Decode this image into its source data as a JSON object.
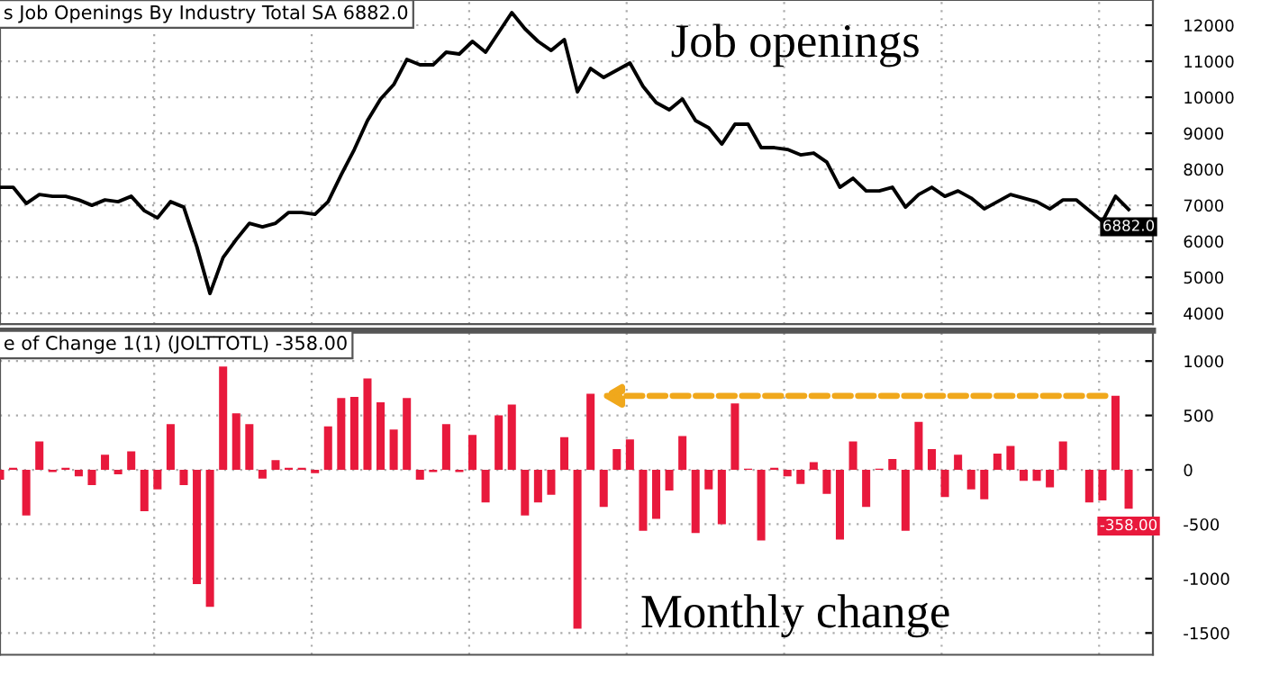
{
  "chart_data": [
    {
      "type": "line",
      "title": "s Job Openings By Industry Total SA 6882.0",
      "annotations": [
        "Job openings"
      ],
      "categories": [
        null,
        null,
        null,
        null,
        null,
        null,
        null,
        null,
        null,
        null,
        null,
        null,
        null,
        null,
        null,
        null,
        null,
        null,
        null,
        null,
        null,
        null,
        null,
        null,
        null,
        null,
        null,
        null,
        null,
        null,
        null,
        null,
        null,
        null,
        null,
        null,
        null,
        null,
        null,
        null,
        null,
        null,
        null,
        null,
        null,
        null,
        null,
        null,
        null,
        null,
        null,
        null,
        null,
        null,
        null,
        null,
        null,
        null,
        null,
        null,
        null,
        null,
        null,
        null,
        null,
        null,
        null,
        null,
        null,
        null,
        null,
        null,
        null,
        null,
        null,
        null,
        null,
        null,
        null,
        null,
        null,
        null,
        null,
        null,
        null,
        null,
        null
      ],
      "series": [
        {
          "color": "#000000",
          "values": [
            7500,
            7500,
            7050,
            7300,
            7250,
            7250,
            7150,
            7000,
            7150,
            7100,
            7250,
            6850,
            6650,
            7100,
            6950,
            5850,
            4550,
            5550,
            6050,
            6500,
            6400,
            6500,
            6800,
            6800,
            6750,
            7100,
            7850,
            8550,
            9350,
            9950,
            10350,
            11050,
            10900,
            10900,
            11250,
            11200,
            11550,
            11250,
            11800,
            12350,
            11900,
            11550,
            11300,
            11600,
            10150,
            10800,
            10550,
            10750,
            10950,
            10300,
            9850,
            9650,
            9950,
            9350,
            9150,
            8700,
            9250,
            9250,
            8600,
            8600,
            8550,
            8400,
            8450,
            8200,
            7500,
            7750,
            7400,
            7400,
            7500,
            6950,
            7300,
            7500,
            7250,
            7400,
            7200,
            6900,
            7100,
            7300,
            7200,
            7100,
            6900,
            7150,
            7150,
            6850,
            6550,
            7250,
            6882
          ],
          "value_labels": [
            null,
            null,
            null,
            null,
            null,
            null,
            null,
            null,
            null,
            null,
            null,
            null,
            null,
            null,
            null,
            null,
            null,
            null,
            null,
            null,
            null,
            null,
            null,
            null,
            null,
            null,
            null,
            null,
            null,
            null,
            null,
            null,
            null,
            null,
            null,
            null,
            null,
            null,
            null,
            null,
            null,
            null,
            null,
            null,
            null,
            null,
            null,
            null,
            null,
            null,
            null,
            null,
            null,
            null,
            null,
            null,
            null,
            null,
            null,
            null,
            null,
            null,
            null,
            null,
            null,
            null,
            null,
            null,
            null,
            null,
            null,
            null,
            null,
            null,
            null,
            null,
            null,
            null,
            null,
            null,
            null,
            null,
            null,
            null,
            null,
            null,
            "6882.0"
          ]
        }
      ],
      "ylim": [
        3700,
        12700
      ],
      "yticks": [
        4000,
        5000,
        6000,
        7000,
        8000,
        9000,
        10000,
        11000,
        12000
      ],
      "grid": true
    },
    {
      "type": "bar",
      "title": "e of Change 1(1) (JOLTTOTL) -358.00",
      "annotations": [
        "Monthly change"
      ],
      "categories": [
        null,
        null,
        null,
        null,
        null,
        null,
        null,
        null,
        null,
        null,
        null,
        null,
        null,
        null,
        null,
        null,
        null,
        null,
        null,
        null,
        null,
        null,
        null,
        null,
        null,
        null,
        null,
        null,
        null,
        null,
        null,
        null,
        null,
        null,
        null,
        null,
        null,
        null,
        null,
        null,
        null,
        null,
        null,
        null,
        null,
        null,
        null,
        null,
        null,
        null,
        null,
        null,
        null,
        null,
        null,
        null,
        null,
        null,
        null,
        null,
        null,
        null,
        null,
        null,
        null,
        null,
        null,
        null,
        null,
        null,
        null,
        null,
        null,
        null,
        null,
        null,
        null,
        null,
        null,
        null,
        null,
        null,
        null,
        null,
        null,
        null,
        null
      ],
      "series": [
        {
          "color": "#e8193c",
          "values": [
            -90,
            20,
            -420,
            260,
            -20,
            20,
            -60,
            -140,
            140,
            -40,
            170,
            -380,
            -180,
            420,
            -140,
            -1050,
            -1260,
            950,
            520,
            420,
            -80,
            90,
            20,
            20,
            -30,
            400,
            660,
            670,
            840,
            620,
            370,
            660,
            -90,
            -20,
            420,
            -20,
            320,
            -300,
            500,
            600,
            -420,
            -300,
            -230,
            300,
            -1460,
            700,
            -340,
            190,
            280,
            -560,
            -450,
            -190,
            310,
            -580,
            -180,
            -500,
            610,
            10,
            -650,
            20,
            -60,
            -130,
            70,
            -220,
            -640,
            260,
            -340,
            10,
            100,
            -560,
            440,
            190,
            -250,
            140,
            -180,
            -270,
            150,
            220,
            -100,
            -100,
            -160,
            260,
            0,
            -300,
            -280,
            680,
            -358
          ],
          "value_labels": [
            null,
            null,
            null,
            null,
            null,
            null,
            null,
            null,
            null,
            null,
            null,
            null,
            null,
            null,
            null,
            null,
            null,
            null,
            null,
            null,
            null,
            null,
            null,
            null,
            null,
            null,
            null,
            null,
            null,
            null,
            null,
            null,
            null,
            null,
            null,
            null,
            null,
            null,
            null,
            null,
            null,
            null,
            null,
            null,
            null,
            null,
            null,
            null,
            null,
            null,
            null,
            null,
            null,
            null,
            null,
            null,
            null,
            null,
            null,
            null,
            null,
            null,
            null,
            null,
            null,
            null,
            null,
            null,
            null,
            null,
            null,
            null,
            null,
            null,
            null,
            null,
            null,
            null,
            null,
            null,
            null,
            null,
            null,
            null,
            null,
            null,
            "-358.00"
          ]
        }
      ],
      "ylim": [
        -1700,
        1280
      ],
      "yticks": [
        -1500,
        -1000,
        -500,
        0,
        500,
        1000
      ],
      "grid": true
    }
  ]
}
